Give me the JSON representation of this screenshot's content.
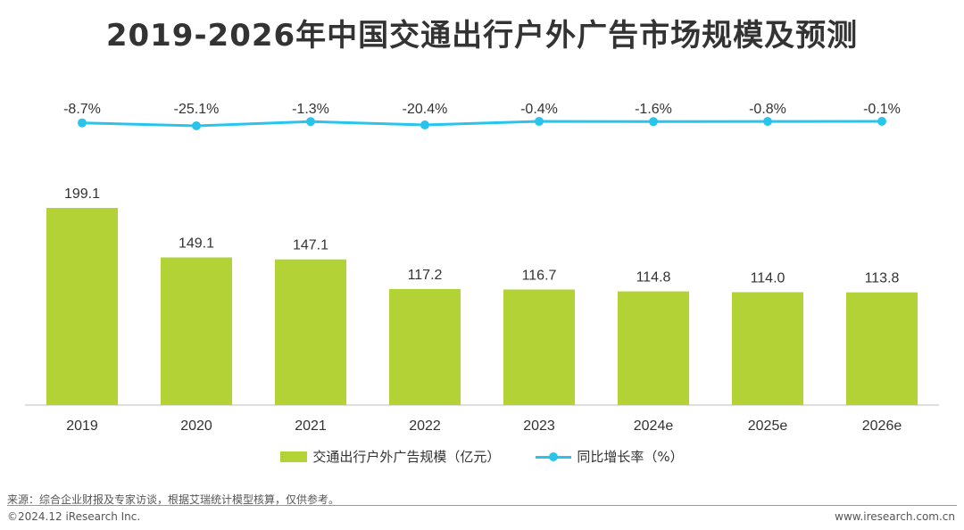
{
  "title": "2019-2026年中国交通出行户外广告市场规模及预测",
  "colors": {
    "bar": "#b2d235",
    "line": "#29c4ec",
    "axis": "#bfbfbf"
  },
  "chart_data": {
    "type": "bar",
    "categories": [
      "2019",
      "2020",
      "2021",
      "2022",
      "2023",
      "2024e",
      "2025e",
      "2026e"
    ],
    "series": [
      {
        "name": "交通出行户外广告规模（亿元）",
        "type": "bar",
        "values": [
          199.1,
          149.1,
          147.1,
          117.2,
          116.7,
          114.8,
          114.0,
          113.8
        ],
        "labels": [
          "199.1",
          "149.1",
          "147.1",
          "117.2",
          "116.7",
          "114.8",
          "114.0",
          "113.8"
        ]
      },
      {
        "name": "同比增长率（%）",
        "type": "line",
        "values": [
          -8.7,
          -25.1,
          -1.3,
          -20.4,
          -0.4,
          -1.6,
          -0.8,
          -0.1
        ],
        "labels": [
          "-8.7%",
          "-25.1%",
          "-1.3%",
          "-20.4%",
          "-0.4%",
          "-1.6%",
          "-0.8%",
          "-0.1%"
        ]
      }
    ],
    "ylim": [
      0,
      200
    ],
    "grid": false,
    "legend_position": "bottom"
  },
  "legend": {
    "bar_label": "交通出行户外广告规模（亿元）",
    "line_label": "同比增长率（%）"
  },
  "footer": {
    "source": "来源：综合企业财报及专家访谈，根据艾瑞统计模型核算，仅供参考。",
    "copyright": "©2024.12 iResearch Inc.",
    "site": "www.iresearch.com.cn"
  }
}
